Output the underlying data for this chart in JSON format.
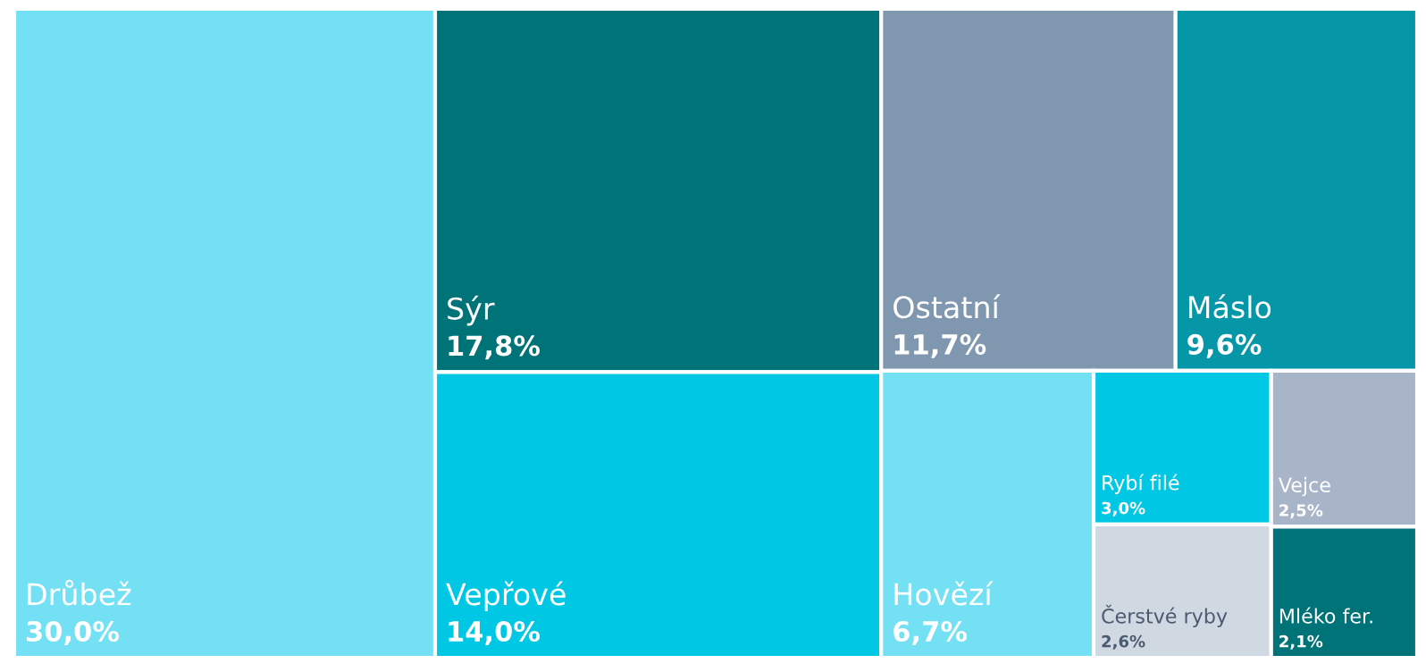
{
  "chart_data": {
    "type": "other",
    "categories": [
      "Drůbež",
      "Sýr",
      "Vepřové",
      "Ostatní",
      "Máslo",
      "Hovězí",
      "Rybí filé",
      "Čerstvé ryby",
      "Vejce",
      "Mléko fer."
    ],
    "values": [
      30.0,
      17.8,
      14.0,
      11.7,
      9.6,
      6.7,
      3.0,
      2.6,
      2.5,
      2.1
    ],
    "value_labels": [
      "30,0%",
      "17,8%",
      "14,0%",
      "11,7%",
      "9,6%",
      "6,7%",
      "3,0%",
      "2,6%",
      "2,5%",
      "2,1%"
    ],
    "colors": [
      "#74e0f4",
      "#007378",
      "#00c8e4",
      "#8097b0",
      "#0596a8",
      "#74e0f4",
      "#00c8e4",
      "#d0d8e2",
      "#a8b4c8",
      "#007378"
    ]
  }
}
